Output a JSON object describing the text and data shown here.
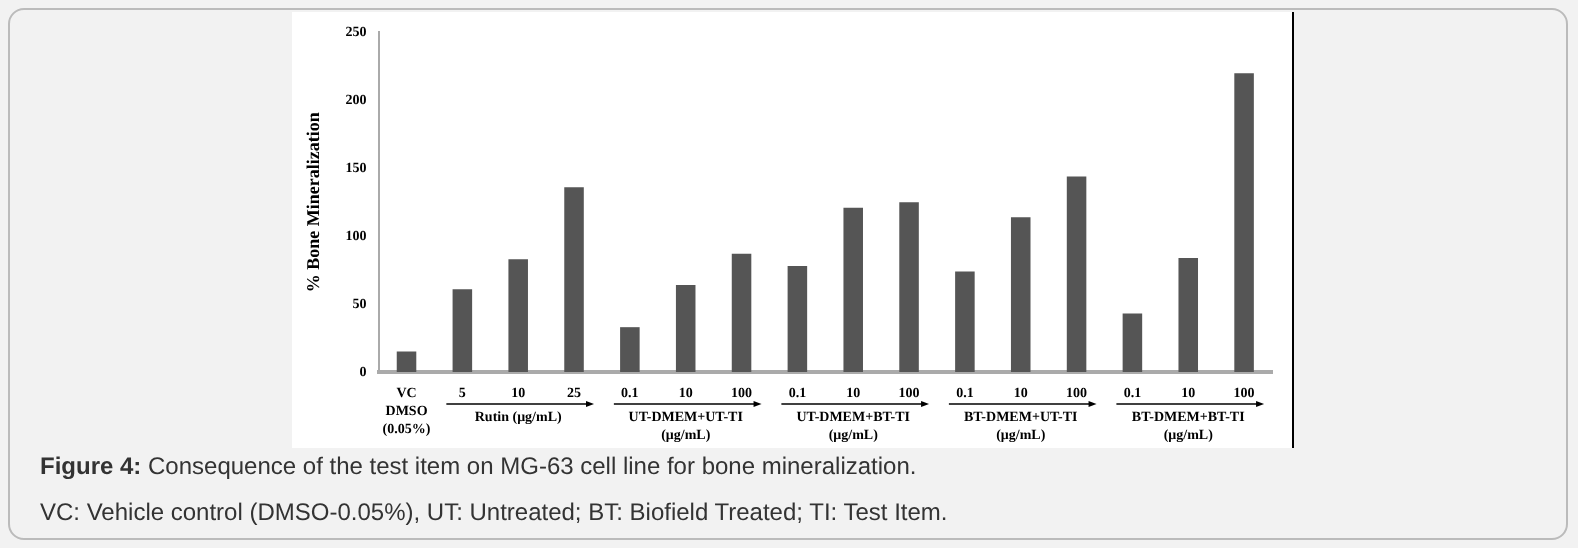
{
  "chart_data": {
    "type": "bar",
    "ylabel": "% Bone Mineralization",
    "categories": [
      "VC\nDMSO\n(0.05%)",
      "5",
      "10",
      "25",
      "0.1",
      "10",
      "100",
      "0.1",
      "10",
      "100",
      "0.1",
      "10",
      "100",
      "0.1",
      "10",
      "100"
    ],
    "values": [
      15,
      61,
      83,
      136,
      33,
      64,
      87,
      78,
      121,
      125,
      74,
      114,
      144,
      43,
      84,
      220
    ],
    "color": "#555555",
    "ylim": [
      0,
      250
    ],
    "yticks": [
      0,
      50,
      100,
      150,
      200,
      250
    ],
    "grid": false,
    "legend": false,
    "annotations": [
      "Rutin (μg/mL)",
      "UT-DMEM+UT-TI\n(μg/mL)",
      "UT-DMEM+BT-TI\n(μg/mL)",
      "BT-DMEM+UT-TI\n(μg/mL)",
      "BT-DMEM+BT-TI\n(μg/mL)",
      "Figure 4: Consequence of the test item on MG-63 cell line for bone mineralization.",
      "VC: Vehicle control (DMSO-0.05%), UT: Untreated; BT: Biofield Treated; TI: Test Item."
    ]
  }
}
